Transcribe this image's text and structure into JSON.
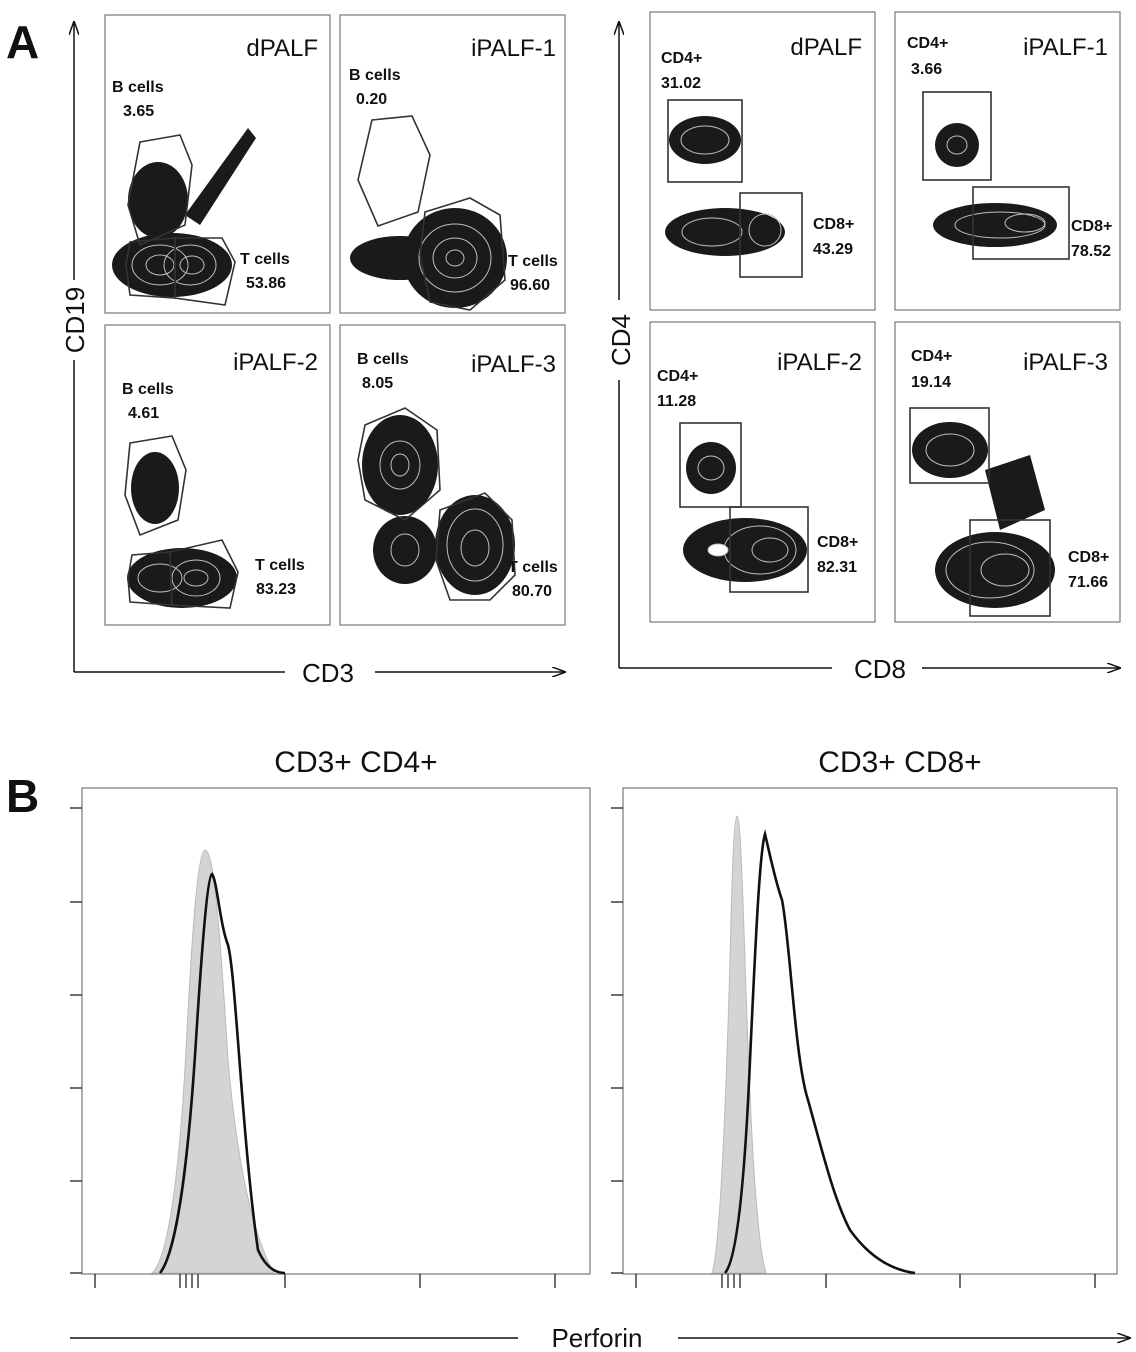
{
  "panel_a": {
    "letter": "A",
    "left_block": {
      "x_axis": "CD3",
      "y_axis": "CD19",
      "plots": [
        {
          "sample": "dPALF",
          "gate1_name": "B cells",
          "gate1_value": "3.65",
          "gate2_name": "T cells",
          "gate2_value": "53.86"
        },
        {
          "sample": "iPALF-1",
          "gate1_name": "B cells",
          "gate1_value": "0.20",
          "gate2_name": "T cells",
          "gate2_value": "96.60"
        },
        {
          "sample": "iPALF-2",
          "gate1_name": "B cells",
          "gate1_value": "4.61",
          "gate2_name": "T cells",
          "gate2_value": "83.23"
        },
        {
          "sample": "iPALF-3",
          "gate1_name": "B cells",
          "gate1_value": "8.05",
          "gate2_name": "T cells",
          "gate2_value": "80.70"
        }
      ]
    },
    "right_block": {
      "x_axis": "CD8",
      "y_axis": "CD4",
      "plots": [
        {
          "sample": "dPALF",
          "gate1_name": "CD4+",
          "gate1_value": "31.02",
          "gate2_name": "CD8+",
          "gate2_value": "43.29"
        },
        {
          "sample": "iPALF-1",
          "gate1_name": "CD4+",
          "gate1_value": "3.66",
          "gate2_name": "CD8+",
          "gate2_value": "78.52"
        },
        {
          "sample": "iPALF-2",
          "gate1_name": "CD4+",
          "gate1_value": "11.28",
          "gate2_name": "CD8+",
          "gate2_value": "82.31"
        },
        {
          "sample": "iPALF-3",
          "gate1_name": "CD4+",
          "gate1_value": "19.14",
          "gate2_name": "CD8+",
          "gate2_value": "71.66"
        }
      ]
    }
  },
  "panel_b": {
    "letter": "B",
    "x_axis": "Perforin",
    "histograms": [
      {
        "title": "CD3+ CD4+"
      },
      {
        "title": "CD3+ CD8+"
      }
    ],
    "colors": {
      "isotype_fill": "#d4d4d4",
      "stain_line": "#111111"
    }
  }
}
